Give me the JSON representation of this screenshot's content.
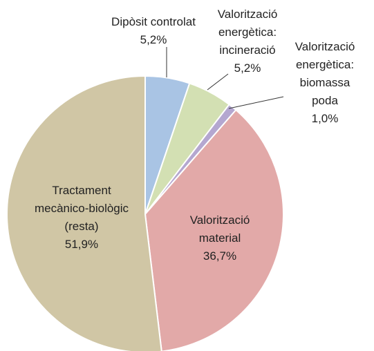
{
  "chart_data": {
    "type": "pie",
    "categories": [
      "Dipòsit controlat",
      "Valorització\nenergètica:\nincineració",
      "Valorització\nenergètica:\nbiomassa poda",
      "Valorització\nmaterial",
      "Tractament\nmecànico-biològic\n(resta)"
    ],
    "values": [
      5.2,
      5.2,
      1.0,
      36.7,
      51.9
    ],
    "value_labels": [
      "5,2%",
      "5,2%",
      "1,0%",
      "36,7%",
      "51,9%"
    ],
    "colors": [
      "#a9c4e4",
      "#d3e0b3",
      "#b4a7d0",
      "#e2a9a8",
      "#d0c6a5"
    ]
  }
}
